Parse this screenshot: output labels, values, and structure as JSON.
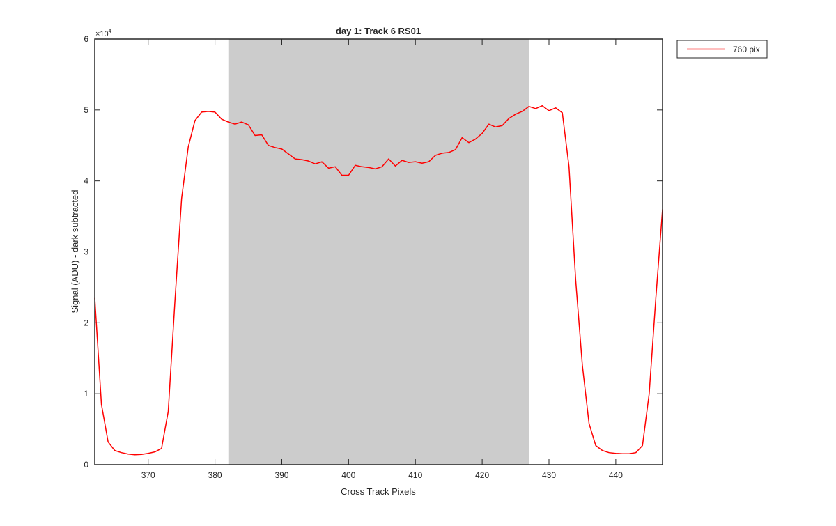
{
  "chart_data": {
    "type": "line",
    "title": "day 1: Track 6  RS01",
    "xlabel": "Cross Track Pixels",
    "ylabel": "Signal (ADU) - dark subtracted",
    "y_exponent_label": "×10",
    "y_exponent_power": "4",
    "xlim": [
      362,
      447
    ],
    "ylim": [
      0,
      6
    ],
    "x_ticks": [
      370,
      380,
      390,
      400,
      410,
      420,
      430,
      440
    ],
    "x_tick_labels": [
      "370",
      "380",
      "390",
      "400",
      "410",
      "420",
      "430",
      "440"
    ],
    "y_ticks": [
      0,
      1,
      2,
      3,
      4,
      5,
      6
    ],
    "y_tick_labels": [
      "0",
      "1",
      "2",
      "3",
      "4",
      "5",
      "6"
    ],
    "grid": false,
    "legend_position": "outside-top-right",
    "shaded_region": {
      "x_start": 382,
      "x_end": 427,
      "color": "#cccccc"
    },
    "series": [
      {
        "name": "760 pix",
        "color": "#ff0000",
        "x": [
          362,
          363,
          364,
          365,
          366,
          367,
          368,
          369,
          370,
          371,
          372,
          373,
          374,
          375,
          376,
          377,
          378,
          379,
          380,
          381,
          382,
          383,
          384,
          385,
          386,
          387,
          388,
          389,
          390,
          391,
          392,
          393,
          394,
          395,
          396,
          397,
          398,
          399,
          400,
          401,
          402,
          403,
          404,
          405,
          406,
          407,
          408,
          409,
          410,
          411,
          412,
          413,
          414,
          415,
          416,
          417,
          418,
          419,
          420,
          421,
          422,
          423,
          424,
          425,
          426,
          427,
          428,
          429,
          430,
          431,
          432,
          433,
          434,
          435,
          436,
          437,
          438,
          439,
          440,
          441,
          442,
          443,
          444,
          445,
          446,
          447
        ],
        "y": [
          2.35,
          0.85,
          0.32,
          0.2,
          0.17,
          0.15,
          0.14,
          0.145,
          0.16,
          0.18,
          0.23,
          0.75,
          2.3,
          3.75,
          4.48,
          4.85,
          4.97,
          4.98,
          4.97,
          4.87,
          4.83,
          4.8,
          4.83,
          4.79,
          4.64,
          4.65,
          4.5,
          4.47,
          4.45,
          4.38,
          4.31,
          4.3,
          4.28,
          4.24,
          4.27,
          4.18,
          4.2,
          4.08,
          4.08,
          4.22,
          4.2,
          4.19,
          4.17,
          4.2,
          4.31,
          4.21,
          4.29,
          4.26,
          4.27,
          4.25,
          4.27,
          4.36,
          4.39,
          4.4,
          4.44,
          4.61,
          4.54,
          4.59,
          4.67,
          4.8,
          4.76,
          4.78,
          4.88,
          4.94,
          4.98,
          5.05,
          5.02,
          5.06,
          4.99,
          5.03,
          4.96,
          4.2,
          2.6,
          1.4,
          0.58,
          0.27,
          0.2,
          0.17,
          0.16,
          0.155,
          0.155,
          0.17,
          0.27,
          1.0,
          2.35,
          3.6
        ]
      }
    ]
  }
}
